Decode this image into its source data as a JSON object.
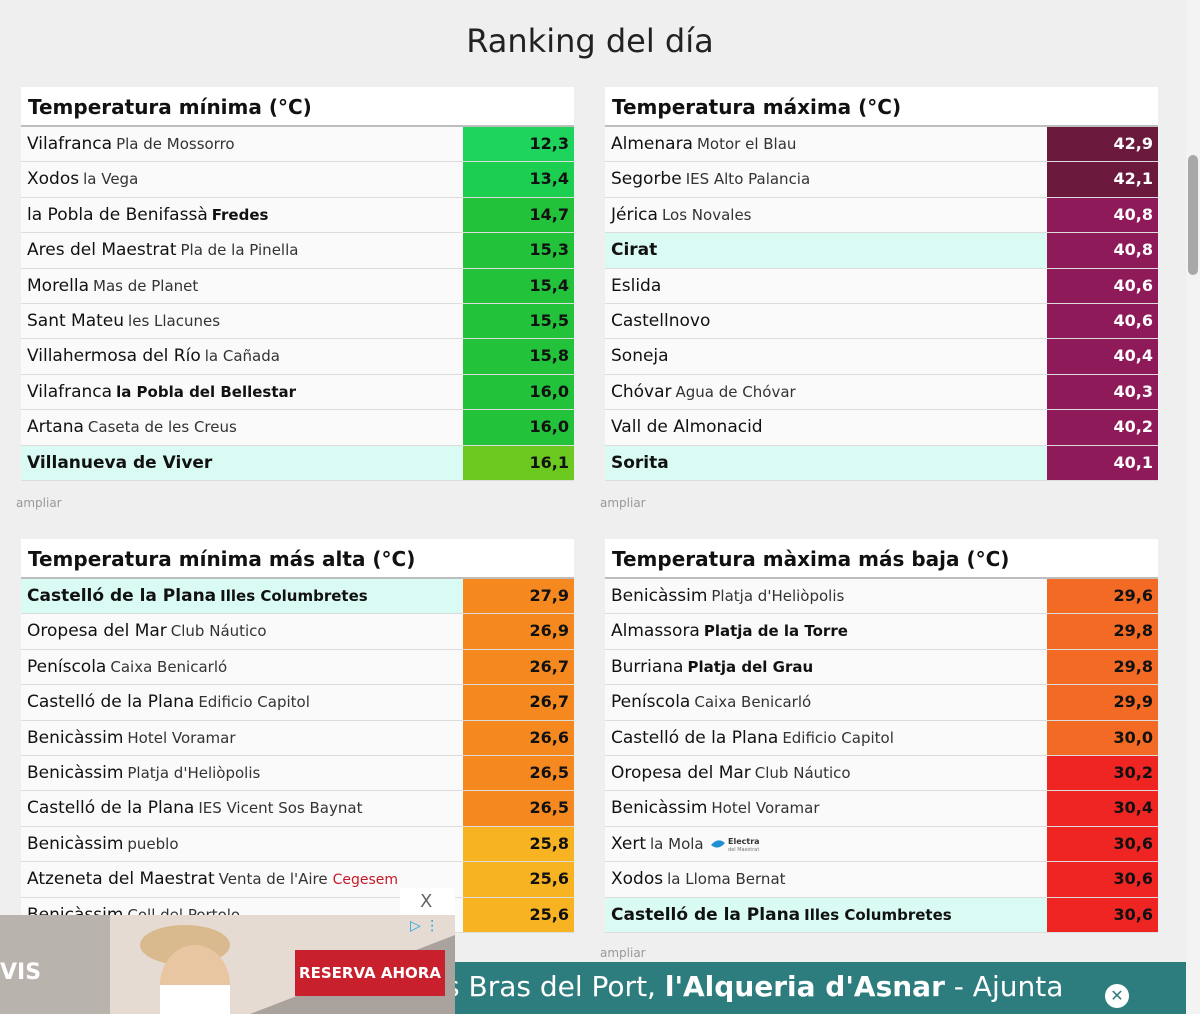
{
  "title": "Ranking del día",
  "more_label": "ampliar",
  "panels": [
    {
      "title": "Temperatura mínima (°C)",
      "rows": [
        {
          "city": "Vilafranca",
          "station": "Pla de Mossorro",
          "value": "12,3",
          "color": "#1fd45c"
        },
        {
          "city": "Xodos",
          "station": "la Vega",
          "value": "13,4",
          "color": "#1ccf50"
        },
        {
          "city": "la Pobla de Benifassà",
          "station": "Fredes",
          "station_bold": true,
          "value": "14,7",
          "color": "#22c23a"
        },
        {
          "city": "Ares del Maestrat",
          "station": "Pla de la Pinella",
          "value": "15,3",
          "color": "#22c23a"
        },
        {
          "city": "Morella",
          "station": "Mas de Planet",
          "value": "15,4",
          "color": "#22c23a"
        },
        {
          "city": "Sant Mateu",
          "station": "les Llacunes",
          "value": "15,5",
          "color": "#22c23a"
        },
        {
          "city": "Villahermosa del Río",
          "station": "la Cañada",
          "value": "15,8",
          "color": "#22c23a"
        },
        {
          "city": "Vilafranca",
          "station": "la Pobla del Bellestar",
          "station_bold": true,
          "value": "16,0",
          "color": "#22c23a"
        },
        {
          "city": "Artana",
          "station": "Caseta de les Creus",
          "value": "16,0",
          "color": "#22c23a"
        },
        {
          "city": "Villanueva de Viver",
          "station": "",
          "value": "16,1",
          "color": "#6cc91f",
          "highlight": true
        }
      ]
    },
    {
      "title": "Temperatura máxima (°C)",
      "rows": [
        {
          "city": "Almenara",
          "station": "Motor el Blau",
          "value": "42,9",
          "color": "#6b1a3d"
        },
        {
          "city": "Segorbe",
          "station": "IES Alto Palancia",
          "value": "42,1",
          "color": "#6b1a3d"
        },
        {
          "city": "Jérica",
          "station": "Los Novales",
          "value": "40,8",
          "color": "#8e1a5a"
        },
        {
          "city": "Cirat",
          "station": "",
          "value": "40,8",
          "color": "#8e1a5a",
          "highlight": true
        },
        {
          "city": "Eslida",
          "station": "",
          "value": "40,6",
          "color": "#8e1a5a"
        },
        {
          "city": "Castellnovo",
          "station": "",
          "value": "40,6",
          "color": "#8e1a5a"
        },
        {
          "city": "Soneja",
          "station": "",
          "value": "40,4",
          "color": "#8e1a5a"
        },
        {
          "city": "Chóvar",
          "station": "Agua de Chóvar",
          "value": "40,3",
          "color": "#8e1a5a"
        },
        {
          "city": "Vall de Almonacid",
          "station": "",
          "value": "40,2",
          "color": "#8e1a5a"
        },
        {
          "city": "Sorita",
          "station": "",
          "value": "40,1",
          "color": "#8e1a5a",
          "highlight": true
        }
      ]
    },
    {
      "title": "Temperatura mínima más alta (°C)",
      "rows": [
        {
          "city": "Castelló de la Plana",
          "station": "Illes Columbretes",
          "station_bold": true,
          "value": "27,9",
          "color": "#f5891f",
          "highlight": true
        },
        {
          "city": "Oropesa del Mar",
          "station": "Club Náutico",
          "value": "26,9",
          "color": "#f5891f"
        },
        {
          "city": "Peníscola",
          "station": "Caixa Benicarló",
          "value": "26,7",
          "color": "#f5891f"
        },
        {
          "city": "Castelló de la Plana",
          "station": "Edificio Capitol",
          "value": "26,7",
          "color": "#f5891f"
        },
        {
          "city": "Benicàssim",
          "station": "Hotel Voramar",
          "value": "26,6",
          "color": "#f5891f"
        },
        {
          "city": "Benicàssim",
          "station": "Platja d'Heliòpolis",
          "value": "26,5",
          "color": "#f5891f"
        },
        {
          "city": "Castelló de la Plana",
          "station": "IES Vicent Sos Baynat",
          "value": "26,5",
          "color": "#f5891f"
        },
        {
          "city": "Benicàssim",
          "station": "pueblo",
          "value": "25,8",
          "color": "#f7b321"
        },
        {
          "city": "Atzeneta del Maestrat",
          "station": "Venta de l'Aire",
          "brand": "Cegesem",
          "value": "25,6",
          "color": "#f7b321"
        },
        {
          "city": "Benicàssim",
          "station": "Coll del Portolo",
          "value": "25,6",
          "color": "#f7b321"
        }
      ]
    },
    {
      "title": "Temperatura màxima más baja (°C)",
      "rows": [
        {
          "city": "Benicàssim",
          "station": "Platja d'Heliòpolis",
          "value": "29,6",
          "color": "#f26a23"
        },
        {
          "city": "Almassora",
          "station": "Platja de la Torre",
          "station_bold": true,
          "value": "29,8",
          "color": "#f26a23"
        },
        {
          "city": "Burriana",
          "station": "Platja del Grau",
          "station_bold": true,
          "value": "29,8",
          "color": "#f26a23"
        },
        {
          "city": "Peníscola",
          "station": "Caixa Benicarló",
          "value": "29,9",
          "color": "#f26a23"
        },
        {
          "city": "Castelló de la Plana",
          "station": "Edificio Capitol",
          "value": "30,0",
          "color": "#f26a23"
        },
        {
          "city": "Oropesa del Mar",
          "station": "Club Náutico",
          "value": "30,2",
          "color": "#ee2522"
        },
        {
          "city": "Benicàssim",
          "station": "Hotel Voramar",
          "value": "30,4",
          "color": "#ee2522"
        },
        {
          "city": "Xert",
          "station": "la Mola",
          "logo": "Electra del Maestrat",
          "value": "30,6",
          "color": "#ee2522"
        },
        {
          "city": "Xodos",
          "station": "la Lloma Bernat",
          "value": "30,6",
          "color": "#ee2522"
        },
        {
          "city": "Castelló de la Plana",
          "station": "Illes Columbretes",
          "station_bold": true,
          "value": "30,6",
          "color": "#ee2522",
          "highlight": true
        }
      ]
    }
  ],
  "ad": {
    "cta": "RESERVA AHORA",
    "brand_fragment": "VIS",
    "close_label": "X",
    "info_icon": "adchoices-icon"
  },
  "ticker": {
    "text_pre": "s Bras del Port, ",
    "text_bold": "l'Alqueria d'Asnar",
    "text_post": " - Ajunta",
    "close_icon": "close-circle-icon"
  }
}
